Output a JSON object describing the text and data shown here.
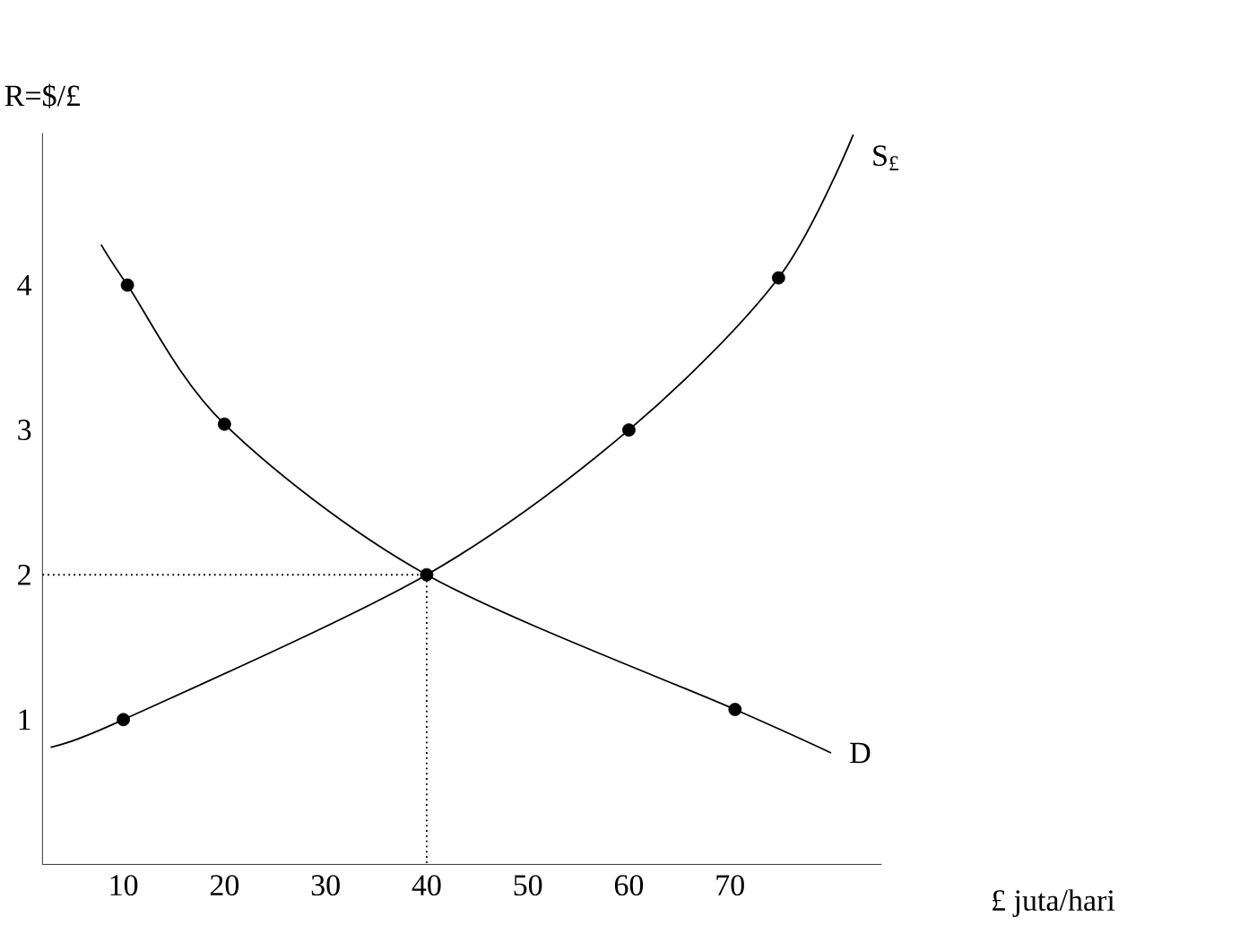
{
  "chart_data": {
    "type": "line",
    "xlabel": "£ juta/hari",
    "ylabel": "R=$/£",
    "xlim": [
      2,
      85
    ],
    "ylim": [
      0,
      5.05
    ],
    "xticks": [
      10,
      20,
      30,
      40,
      50,
      60,
      70
    ],
    "yticks": [
      1,
      2,
      3,
      4
    ],
    "series": [
      {
        "name": "S$_{£}$",
        "color": "#000000",
        "marker": "none",
        "line_style": "solid",
        "x": [
          2.8,
          10,
          40,
          60,
          74.8,
          82.2
        ],
        "values": [
          0.81,
          1,
          2,
          3,
          4.05,
          5.04
        ]
      },
      {
        "name": "D",
        "color": "#000000",
        "marker": "none",
        "line_style": "solid",
        "x": [
          7.8,
          10.4,
          20,
          40,
          70.5,
          80
        ],
        "values": [
          4.28,
          4.0,
          3.04,
          2,
          1.07,
          0.77
        ]
      },
      {
        "type": "scatter",
        "color": "#000000",
        "marker": "circle",
        "x": [
          10,
          40,
          60,
          74.8
        ],
        "values": [
          1,
          2,
          3,
          4.05
        ]
      },
      {
        "type": "scatter",
        "color": "#000000",
        "marker": "circle",
        "x": [
          10.4,
          20,
          70.5
        ],
        "values": [
          4.0,
          3.04,
          1.07
        ]
      },
      {
        "color": "#000000",
        "marker": "none",
        "line_style": "dotted",
        "x": [
          2,
          40,
          40
        ],
        "values": [
          2,
          2,
          0
        ]
      }
    ]
  }
}
